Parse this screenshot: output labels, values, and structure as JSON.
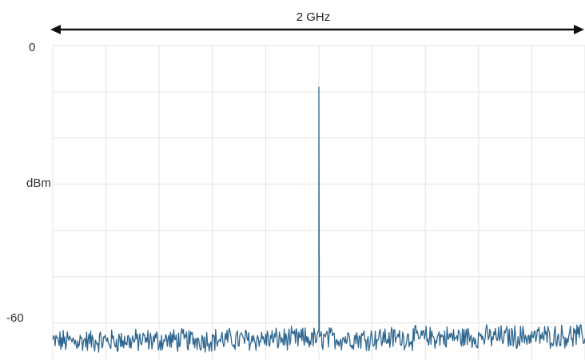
{
  "chart_data": {
    "type": "line",
    "title": "",
    "xlabel": "",
    "ylabel": "dBm",
    "span_label": "2 GHz",
    "x_range_ghz": [
      0,
      2
    ],
    "ylim": [
      0,
      -68
    ],
    "y_tick_labels": [
      {
        "value": 0,
        "label": "0"
      },
      {
        "value": -60,
        "label": "-60"
      }
    ],
    "grid": true,
    "grid_divisions": {
      "x": 10,
      "y": 6
    },
    "series": [
      {
        "color": "#2e6690",
        "peak": {
          "x_ghz": 1.0,
          "dbm": -9
        },
        "noise_floor_dbm": -64,
        "noise_amplitude_db": 2.2
      }
    ],
    "colors": {
      "trace": "#2e6690",
      "grid": "#e3e3e3",
      "arrow": "#111111"
    }
  }
}
